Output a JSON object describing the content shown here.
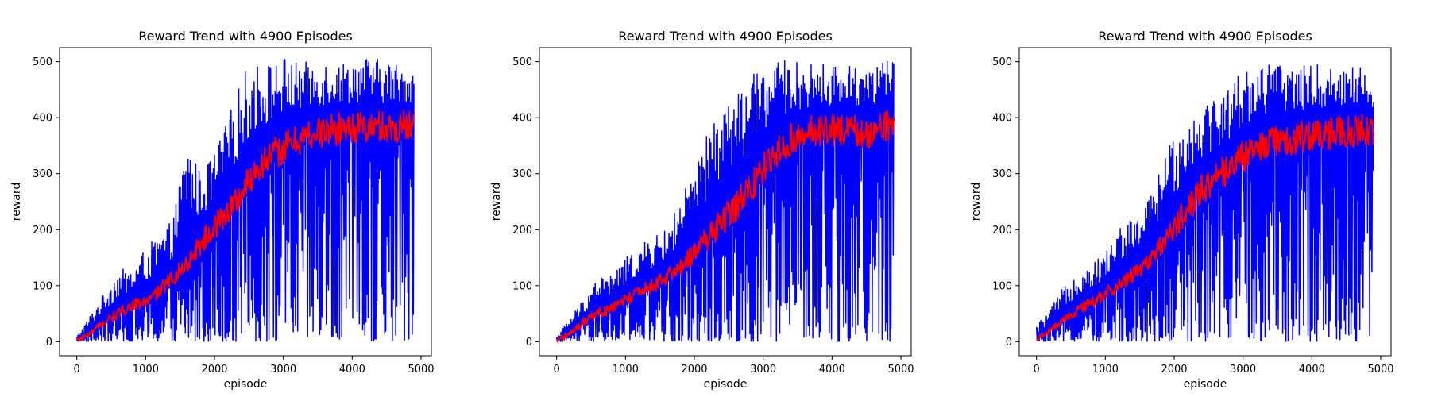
{
  "colors": {
    "raw": "#0000ff",
    "smoothed": "#ff0000"
  },
  "chart_data": [
    {
      "type": "line",
      "title": "Reward Trend with 4900 Episodes",
      "xlabel": "episode",
      "ylabel": "reward",
      "xlim": [
        -250,
        5150
      ],
      "ylim": [
        -25,
        525
      ],
      "xticks": [
        0,
        1000,
        2000,
        3000,
        4000,
        5000
      ],
      "yticks": [
        0,
        100,
        200,
        300,
        400,
        500
      ],
      "grid": false,
      "series": [
        {
          "x": [
            0,
            200,
            400,
            600,
            800,
            1000,
            1200,
            1400,
            1600,
            1800,
            2000,
            2200,
            2400,
            2600,
            2800,
            3000,
            3200,
            3400,
            3600,
            3800,
            4000,
            4200,
            4400,
            4600,
            4800,
            4900
          ],
          "min": [
            0,
            0,
            0,
            0,
            0,
            0,
            0,
            0,
            0,
            0,
            0,
            0,
            0,
            0,
            0,
            0,
            0,
            0,
            0,
            0,
            0,
            0,
            0,
            0,
            0,
            0
          ],
          "max": [
            10,
            50,
            90,
            130,
            130,
            170,
            190,
            220,
            370,
            300,
            340,
            400,
            480,
            500,
            500,
            510,
            500,
            500,
            505,
            500,
            505,
            510,
            505,
            500,
            495,
            480
          ]
        },
        {
          "x": [
            0,
            200,
            400,
            600,
            800,
            1000,
            1200,
            1400,
            1600,
            1800,
            2000,
            2200,
            2400,
            2600,
            2800,
            3000,
            3200,
            3400,
            3600,
            3800,
            4000,
            4200,
            4400,
            4600,
            4800,
            4900
          ],
          "y": [
            2,
            15,
            35,
            50,
            65,
            70,
            90,
            115,
            140,
            175,
            205,
            235,
            265,
            310,
            330,
            345,
            360,
            370,
            375,
            380,
            385,
            380,
            385,
            380,
            390,
            400
          ]
        }
      ]
    },
    {
      "type": "line",
      "title": "Reward Trend with 4900 Episodes",
      "xlabel": "episode",
      "ylabel": "reward",
      "xlim": [
        -250,
        5150
      ],
      "ylim": [
        -25,
        525
      ],
      "xticks": [
        0,
        1000,
        2000,
        3000,
        4000,
        5000
      ],
      "yticks": [
        0,
        100,
        200,
        300,
        400,
        500
      ],
      "grid": false,
      "series": [
        {
          "x": [
            0,
            200,
            400,
            600,
            800,
            1000,
            1200,
            1400,
            1600,
            1800,
            2000,
            2200,
            2400,
            2600,
            2800,
            3000,
            3200,
            3400,
            3600,
            3800,
            4000,
            4200,
            4400,
            4600,
            4800,
            4900
          ],
          "min": [
            0,
            0,
            0,
            0,
            0,
            0,
            0,
            0,
            0,
            0,
            0,
            0,
            0,
            0,
            0,
            0,
            0,
            0,
            0,
            0,
            0,
            0,
            0,
            0,
            0,
            0
          ],
          "max": [
            10,
            45,
            80,
            120,
            120,
            150,
            170,
            190,
            200,
            260,
            300,
            380,
            430,
            440,
            470,
            500,
            500,
            505,
            495,
            500,
            495,
            495,
            500,
            500,
            505,
            500
          ]
        },
        {
          "x": [
            0,
            200,
            400,
            600,
            800,
            1000,
            1200,
            1400,
            1600,
            1800,
            2000,
            2200,
            2400,
            2600,
            2800,
            3000,
            3200,
            3400,
            3600,
            3800,
            4000,
            4200,
            4400,
            4600,
            4800,
            4900
          ],
          "y": [
            2,
            15,
            35,
            50,
            60,
            75,
            90,
            100,
            115,
            135,
            160,
            185,
            215,
            240,
            270,
            310,
            340,
            360,
            375,
            375,
            380,
            375,
            375,
            370,
            385,
            400
          ]
        }
      ]
    },
    {
      "type": "line",
      "title": "Reward Trend with 4900 Episodes",
      "xlabel": "episode",
      "ylabel": "reward",
      "xlim": [
        -250,
        5150
      ],
      "ylim": [
        -25,
        525
      ],
      "xticks": [
        0,
        1000,
        2000,
        3000,
        4000,
        5000
      ],
      "yticks": [
        0,
        100,
        200,
        300,
        400,
        500
      ],
      "grid": false,
      "series": [
        {
          "x": [
            0,
            200,
            400,
            600,
            800,
            1000,
            1200,
            1400,
            1600,
            1800,
            2000,
            2200,
            2400,
            2600,
            2800,
            3000,
            3200,
            3400,
            3600,
            3800,
            4000,
            4200,
            4400,
            4600,
            4800,
            4900
          ],
          "min": [
            0,
            0,
            0,
            0,
            0,
            0,
            0,
            0,
            0,
            0,
            0,
            0,
            0,
            0,
            0,
            0,
            0,
            0,
            0,
            0,
            0,
            0,
            0,
            0,
            0,
            0
          ],
          "max": [
            30,
            60,
            100,
            130,
            140,
            160,
            210,
            220,
            250,
            310,
            380,
            400,
            440,
            440,
            460,
            490,
            500,
            500,
            500,
            490,
            500,
            490,
            495,
            495,
            490,
            470
          ]
        },
        {
          "x": [
            0,
            200,
            400,
            600,
            800,
            1000,
            1200,
            1400,
            1600,
            1800,
            2000,
            2200,
            2400,
            2600,
            2800,
            3000,
            3200,
            3400,
            3600,
            3800,
            4000,
            4200,
            4400,
            4600,
            4800,
            4900
          ],
          "y": [
            3,
            20,
            40,
            55,
            70,
            85,
            100,
            120,
            140,
            170,
            200,
            240,
            270,
            290,
            310,
            330,
            345,
            355,
            360,
            365,
            370,
            370,
            375,
            375,
            380,
            380
          ]
        }
      ]
    }
  ]
}
